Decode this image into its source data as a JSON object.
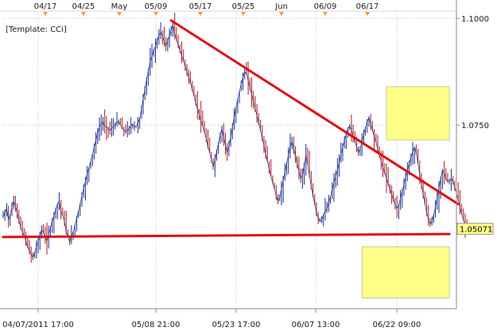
{
  "chart_data": {
    "type": "line",
    "template_label": "[Template: CCi]",
    "top_date_ticks": [
      "04/17",
      "04/25",
      "May",
      "05/09",
      "05/17",
      "05/25",
      "Jun",
      "06/09",
      "06/17"
    ],
    "bottom_time_ticks": [
      "04/07/2011 17:00",
      "05/08 21:00",
      "05/23 17:00",
      "06/07 13:00",
      "06/22 09:00"
    ],
    "y_tick_labels": [
      "1.1000",
      "1.0750"
    ],
    "y_ticks": [
      1.1,
      1.075
    ],
    "ylim": [
      1.032,
      1.1015
    ],
    "current_price": 1.05071,
    "current_price_label": "1.05071",
    "x_count": 260,
    "series": [
      {
        "values": [
          1.0535,
          1.0545,
          1.0555,
          1.0528,
          1.054,
          1.0558,
          1.0572,
          1.056,
          1.0545,
          1.0528,
          1.051,
          1.05,
          1.049,
          1.0478,
          1.0465,
          1.0455,
          1.0448,
          1.044,
          1.0452,
          1.0465,
          1.0478,
          1.049,
          1.0505,
          1.0498,
          1.0488,
          1.0478,
          1.0495,
          1.051,
          1.0525,
          1.0538,
          1.0552,
          1.0565,
          1.0572,
          1.0548,
          1.0538,
          1.0525,
          1.05,
          1.0488,
          1.0476,
          1.0488,
          1.05,
          1.0515,
          1.0532,
          1.0548,
          1.0565,
          1.0585,
          1.0602,
          1.0618,
          1.0635,
          1.065,
          1.0665,
          1.0682,
          1.0698,
          1.0715,
          1.073,
          1.0746,
          1.0752,
          1.0758,
          1.0748,
          1.0745,
          1.0742,
          1.0738,
          1.0742,
          1.0746,
          1.0752,
          1.0756,
          1.0758,
          1.075,
          1.0742,
          1.0738,
          1.0735,
          1.0738,
          1.0742,
          1.0748,
          1.0752,
          1.0745,
          1.0748,
          1.0755,
          1.0765,
          1.0788,
          1.0812,
          1.0835,
          1.0858,
          1.0878,
          1.0898,
          1.0912,
          1.0925,
          1.0935,
          1.0948,
          1.096,
          1.0968,
          1.0958,
          1.0945,
          1.0935,
          1.0948,
          1.096,
          1.0972,
          1.0985,
          1.0965,
          1.095,
          1.0938,
          1.0925,
          1.0912,
          1.09,
          1.0888,
          1.0875,
          1.0862,
          1.0848,
          1.0835,
          1.0818,
          1.0802,
          1.0788,
          1.0775,
          1.076,
          1.0748,
          1.0732,
          1.0718,
          1.07,
          1.0685,
          1.0668,
          1.0652,
          1.0668,
          1.0688,
          1.0708,
          1.0728,
          1.0742,
          1.0722,
          1.0702,
          1.0685,
          1.0702,
          1.0722,
          1.0745,
          1.0768,
          1.079,
          1.081,
          1.083,
          1.0845,
          1.0862,
          1.0875,
          1.087,
          1.0855,
          1.0838,
          1.0822,
          1.0805,
          1.079,
          1.0772,
          1.0755,
          1.0738,
          1.072,
          1.0702,
          1.0682,
          1.0665,
          1.0648,
          1.063,
          1.0615,
          1.06,
          1.0585,
          1.0572,
          1.058,
          1.06,
          1.062,
          1.064,
          1.066,
          1.068,
          1.0698,
          1.0712,
          1.0695,
          1.0678,
          1.066,
          1.0642,
          1.0625,
          1.0632,
          1.0655,
          1.068,
          1.0658,
          1.0632,
          1.0608,
          1.0585,
          1.0565,
          1.0545,
          1.0532,
          1.0525,
          1.0528,
          1.054,
          1.0548,
          1.0555,
          1.0568,
          1.0582,
          1.0598,
          1.0615,
          1.063,
          1.0645,
          1.0662,
          1.068,
          1.0698,
          1.0715,
          1.0728,
          1.0742,
          1.0748,
          1.0738,
          1.0725,
          1.071,
          1.0698,
          1.0685,
          1.0695,
          1.0712,
          1.0728,
          1.0745,
          1.0758,
          1.0768,
          1.0752,
          1.0738,
          1.0724,
          1.071,
          1.0695,
          1.068,
          1.0665,
          1.065,
          1.0638,
          1.0625,
          1.0612,
          1.06,
          1.0588,
          1.0575,
          1.0562,
          1.0555,
          1.0562,
          1.0578,
          1.0595,
          1.0612,
          1.0628,
          1.0645,
          1.066,
          1.0675,
          1.0688,
          1.0698,
          1.0685,
          1.066,
          1.0635,
          1.061,
          1.0588,
          1.0565,
          1.0545,
          1.0528,
          1.0518,
          1.0524,
          1.054,
          1.0558,
          1.058,
          1.0602,
          1.0625,
          1.0645,
          1.0638,
          1.0625,
          1.0618,
          1.062,
          1.0625,
          1.0618,
          1.0605,
          1.059,
          1.0575,
          1.0558,
          1.0542,
          1.0528,
          1.0515,
          1.0507
        ]
      }
    ],
    "trendlines": [
      {
        "x1": 96,
        "y1": 1.0995,
        "x2": 260,
        "y2": 1.0565
      },
      {
        "x1": 0,
        "y1": 1.0488,
        "x2": 255,
        "y2": 1.0495
      }
    ],
    "highlight_boxes": [
      {
        "x1": 219,
        "y1": 1.084,
        "x2": 255,
        "y2": 1.0715
      },
      {
        "x1": 205,
        "y1": 1.0465,
        "x2": 255,
        "y2": 1.0345
      }
    ],
    "colors": {
      "price_line": "#1a2d8c",
      "price_line_alt": "#b01818",
      "trendline": "#e01010",
      "highlight_fill": "#ffff88",
      "highlight_stroke": "#c8c8a0",
      "grid": "#c9c9c9",
      "axis": "#8a8a8a",
      "marker": "#f0a030"
    },
    "grid": true
  }
}
